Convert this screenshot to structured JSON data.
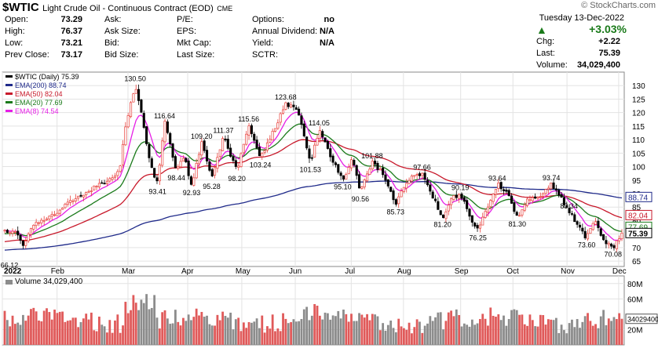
{
  "header": {
    "symbol": "$WTIC",
    "name": "Light Crude Oil - Continuous Contract (EOD)",
    "exchange": "CME",
    "copyright": "© StockCharts.com",
    "date": "Tuesday  13-Dec-2022",
    "change_pct": "+3.03%",
    "quote_left": [
      {
        "label": "Open:",
        "value": "73.29"
      },
      {
        "label": "High:",
        "value": "76.37"
      },
      {
        "label": "Low:",
        "value": "73.21"
      },
      {
        "label": "Prev Close:",
        "value": "73.17"
      }
    ],
    "quote_mid": [
      "Ask:",
      "Ask Size:",
      "Bid:",
      "Bid Size:"
    ],
    "quote_mid2": [
      "P/E:",
      "EPS:",
      "Mkt Cap:",
      "Last Size:"
    ],
    "quote_right": [
      {
        "label": "Options:",
        "value": "no"
      },
      {
        "label": "Annual Dividend:",
        "value": "N/A"
      },
      {
        "label": "Yield:",
        "value": "N/A"
      },
      {
        "label": "SCTR:",
        "value": ""
      }
    ],
    "quote_last": [
      {
        "label": "Chg:",
        "value": "+2.22"
      },
      {
        "label": "Last:",
        "value": "75.39"
      },
      {
        "label": "Volume:",
        "value": "34,029,400"
      }
    ]
  },
  "colors": {
    "up": "#e8413c",
    "down": "#000000",
    "ema200": "#1f2a8a",
    "ema50": "#c8192b",
    "ema20": "#1a7a1a",
    "ema8": "#e61ee6",
    "vol_up": "#e05a5a",
    "vol_down": "#8c8c8c"
  },
  "chart_data": {
    "type": "candlestick",
    "legend": [
      {
        "text": "$WTIC (Daily) 75.39",
        "color": "#000000"
      },
      {
        "text": "EMA(200) 88.74",
        "color": "#1f2a8a"
      },
      {
        "text": "EMA(50) 82.04",
        "color": "#c8192b"
      },
      {
        "text": "EMA(20) 77.69",
        "color": "#1a7a1a"
      },
      {
        "text": "EMA(8) 74.54",
        "color": "#e61ee6"
      }
    ],
    "y_ticks": [
      65,
      70,
      75,
      80,
      85,
      90,
      95,
      100,
      105,
      110,
      115,
      120,
      125,
      130
    ],
    "ylim": [
      63,
      135
    ],
    "months": [
      {
        "label": "2022",
        "t": 0
      },
      {
        "label": "Feb",
        "t": 0.088
      },
      {
        "label": "Mar",
        "t": 0.202
      },
      {
        "label": "Apr",
        "t": 0.298
      },
      {
        "label": "May",
        "t": 0.385
      },
      {
        "label": "Jun",
        "t": 0.471
      },
      {
        "label": "Jul",
        "t": 0.561
      },
      {
        "label": "Aug",
        "t": 0.645
      },
      {
        "label": "Sep",
        "t": 0.737
      },
      {
        "label": "Oct",
        "t": 0.821
      },
      {
        "label": "Nov",
        "t": 0.908
      },
      {
        "label": "Dec",
        "t": 0.991
      }
    ],
    "price_path": [
      [
        0,
        76
      ],
      [
        0.02,
        76.5
      ],
      [
        0.03,
        70
      ],
      [
        0.045,
        78
      ],
      [
        0.08,
        82
      ],
      [
        0.12,
        88
      ],
      [
        0.15,
        92
      ],
      [
        0.18,
        95
      ],
      [
        0.195,
        98
      ],
      [
        0.205,
        115
      ],
      [
        0.222,
        130.5
      ],
      [
        0.232,
        120
      ],
      [
        0.245,
        103
      ],
      [
        0.26,
        93.4
      ],
      [
        0.272,
        116.64
      ],
      [
        0.292,
        98.44
      ],
      [
        0.305,
        104
      ],
      [
        0.318,
        92.93
      ],
      [
        0.335,
        109.2
      ],
      [
        0.352,
        95.28
      ],
      [
        0.372,
        111.37
      ],
      [
        0.395,
        98.2
      ],
      [
        0.415,
        115.56
      ],
      [
        0.435,
        103.24
      ],
      [
        0.455,
        112
      ],
      [
        0.478,
        123.68
      ],
      [
        0.5,
        120
      ],
      [
        0.52,
        101.53
      ],
      [
        0.535,
        114.05
      ],
      [
        0.552,
        105
      ],
      [
        0.575,
        95.1
      ],
      [
        0.592,
        103
      ],
      [
        0.605,
        90.56
      ],
      [
        0.625,
        101.88
      ],
      [
        0.645,
        97
      ],
      [
        0.665,
        85.73
      ],
      [
        0.685,
        95
      ],
      [
        0.71,
        97.66
      ],
      [
        0.73,
        88
      ],
      [
        0.745,
        81.2
      ],
      [
        0.76,
        88
      ],
      [
        0.775,
        90.19
      ],
      [
        0.79,
        82
      ],
      [
        0.805,
        76.25
      ],
      [
        0.82,
        84
      ],
      [
        0.838,
        93.64
      ],
      [
        0.855,
        90
      ],
      [
        0.872,
        81.3
      ],
      [
        0.89,
        88
      ],
      [
        0.91,
        88
      ],
      [
        0.93,
        93.74
      ],
      [
        0.945,
        89
      ],
      [
        0.96,
        83.34
      ],
      [
        0.975,
        78
      ],
      [
        0.99,
        73.6
      ],
      [
        1.005,
        80
      ],
      [
        1.02,
        72
      ],
      [
        1.035,
        70.08
      ],
      [
        1.045,
        73.17
      ],
      [
        1.05,
        75.39
      ]
    ],
    "annotations": [
      {
        "t": 0.008,
        "v": 66.12,
        "label": "66.12",
        "pos": "below"
      },
      {
        "t": 0.222,
        "v": 130.5,
        "label": "130.50",
        "pos": "above"
      },
      {
        "t": 0.26,
        "v": 93.41,
        "label": "93.41",
        "pos": "below"
      },
      {
        "t": 0.272,
        "v": 116.64,
        "label": "116.64",
        "pos": "above"
      },
      {
        "t": 0.292,
        "v": 98.44,
        "label": "98.44",
        "pos": "below"
      },
      {
        "t": 0.318,
        "v": 92.93,
        "label": "92.93",
        "pos": "below"
      },
      {
        "t": 0.335,
        "v": 109.2,
        "label": "109.20",
        "pos": "above"
      },
      {
        "t": 0.352,
        "v": 95.28,
        "label": "95.28",
        "pos": "below"
      },
      {
        "t": 0.372,
        "v": 111.37,
        "label": "111.37",
        "pos": "above"
      },
      {
        "t": 0.395,
        "v": 98.2,
        "label": "98.20",
        "pos": "below"
      },
      {
        "t": 0.415,
        "v": 115.56,
        "label": "115.56",
        "pos": "above"
      },
      {
        "t": 0.435,
        "v": 103.24,
        "label": "103.24",
        "pos": "below"
      },
      {
        "t": 0.478,
        "v": 123.68,
        "label": "123.68",
        "pos": "above"
      },
      {
        "t": 0.52,
        "v": 101.53,
        "label": "101.53",
        "pos": "below"
      },
      {
        "t": 0.535,
        "v": 114.05,
        "label": "114.05",
        "pos": "above"
      },
      {
        "t": 0.575,
        "v": 95.1,
        "label": "95.10",
        "pos": "below"
      },
      {
        "t": 0.605,
        "v": 90.56,
        "label": "90.56",
        "pos": "below"
      },
      {
        "t": 0.625,
        "v": 101.88,
        "label": "101.88",
        "pos": "above"
      },
      {
        "t": 0.665,
        "v": 85.73,
        "label": "85.73",
        "pos": "below"
      },
      {
        "t": 0.71,
        "v": 97.66,
        "label": "97.66",
        "pos": "above"
      },
      {
        "t": 0.745,
        "v": 81.2,
        "label": "81.20",
        "pos": "below"
      },
      {
        "t": 0.775,
        "v": 90.19,
        "label": "90.19",
        "pos": "above"
      },
      {
        "t": 0.805,
        "v": 76.25,
        "label": "76.25",
        "pos": "below"
      },
      {
        "t": 0.838,
        "v": 93.64,
        "label": "93.64",
        "pos": "above"
      },
      {
        "t": 0.872,
        "v": 81.3,
        "label": "81.30",
        "pos": "below"
      },
      {
        "t": 0.93,
        "v": 93.74,
        "label": "93.74",
        "pos": "above"
      },
      {
        "t": 0.96,
        "v": 83.34,
        "label": "83.34",
        "pos": "above"
      },
      {
        "t": 0.99,
        "v": 73.6,
        "label": "73.60",
        "pos": "below"
      },
      {
        "t": 1.035,
        "v": 70.08,
        "label": "70.08",
        "pos": "below"
      }
    ],
    "price_tags": [
      {
        "label": "88.74",
        "v": 88.74,
        "color": "#1f2a8a",
        "bold": false
      },
      {
        "label": "82.04",
        "v": 82.04,
        "color": "#c8192b",
        "bold": false
      },
      {
        "label": "77.69",
        "v": 77.69,
        "color": "#1a7a1a",
        "bold": false
      },
      {
        "label": "75.39",
        "v": 75.39,
        "color": "#000000",
        "bold": true
      }
    ],
    "volume": {
      "label": "Volume 34,029,400",
      "y_ticks": [
        {
          "label": "80M",
          "v": 80
        },
        {
          "label": "60M",
          "v": 60
        },
        {
          "label": "20M",
          "v": 20
        }
      ],
      "ylim": [
        0,
        90
      ],
      "last_tag": "34029400",
      "last_value": 34.03
    }
  }
}
